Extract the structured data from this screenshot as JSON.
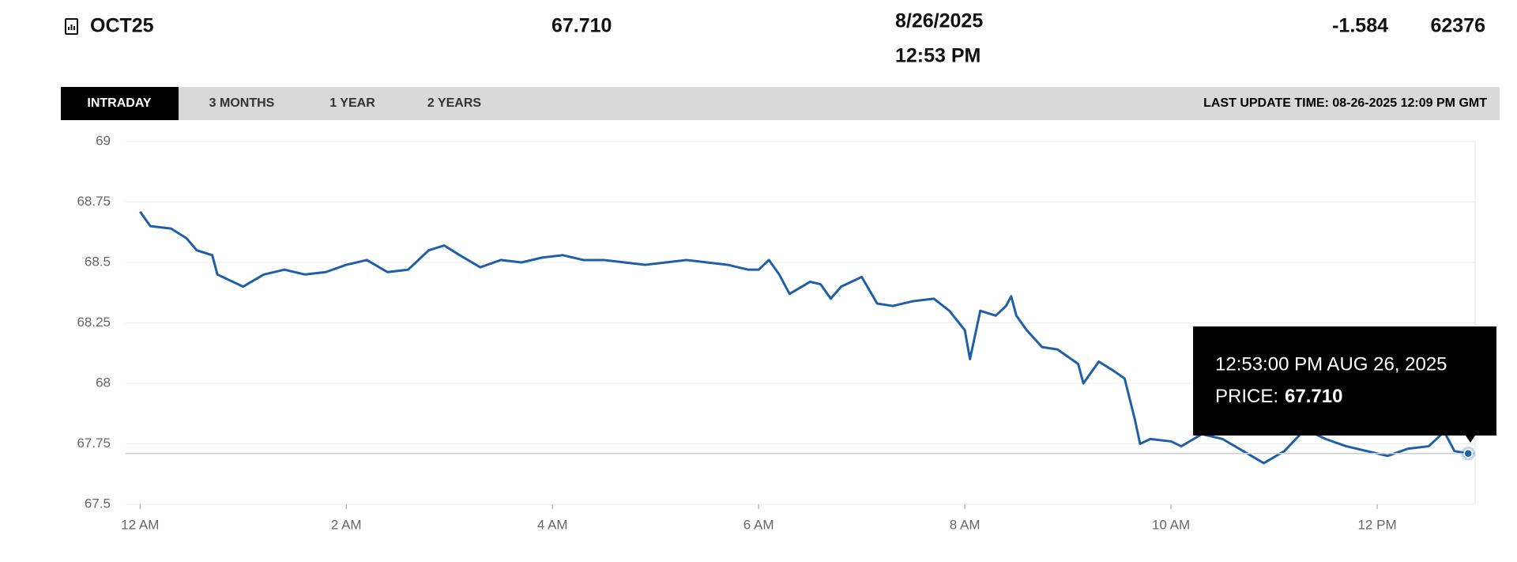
{
  "header": {
    "symbol": "OCT25",
    "price": "67.710",
    "date": "8/26/2025",
    "time": "12:53 PM",
    "change": "-1.584",
    "volume": "62376"
  },
  "tabs": [
    "INTRADAY",
    "3 MONTHS",
    "1 YEAR",
    "2 YEARS"
  ],
  "last_update": "LAST UPDATE TIME: 08-26-2025 12:09 PM GMT",
  "tooltip": {
    "time": "12:53:00 PM AUG 26, 2025",
    "price_label": "PRICE:",
    "price": "67.710"
  },
  "chart_data": {
    "type": "line",
    "x": [
      0,
      0.1,
      0.3,
      0.45,
      0.55,
      0.7,
      0.75,
      0.9,
      1.0,
      1.2,
      1.4,
      1.6,
      1.8,
      2.0,
      2.2,
      2.4,
      2.6,
      2.8,
      2.95,
      3.1,
      3.3,
      3.5,
      3.7,
      3.9,
      4.1,
      4.3,
      4.5,
      4.7,
      4.9,
      5.1,
      5.3,
      5.5,
      5.7,
      5.9,
      6.0,
      6.1,
      6.2,
      6.3,
      6.5,
      6.6,
      6.7,
      6.8,
      6.9,
      7.0,
      7.15,
      7.3,
      7.5,
      7.7,
      7.85,
      8.0,
      8.05,
      8.15,
      8.3,
      8.4,
      8.45,
      8.5,
      8.6,
      8.75,
      8.9,
      9.1,
      9.15,
      9.3,
      9.45,
      9.55,
      9.65,
      9.7,
      9.8,
      10.0,
      10.1,
      10.3,
      10.5,
      10.7,
      10.9,
      11.1,
      11.3,
      11.5,
      11.7,
      11.9,
      12.1,
      12.3,
      12.5,
      12.65,
      12.75,
      12.883
    ],
    "series": [
      {
        "name": "OCT25",
        "color": "#1f5fa8",
        "values": [
          68.71,
          68.65,
          68.64,
          68.6,
          68.55,
          68.53,
          68.45,
          68.42,
          68.4,
          68.45,
          68.47,
          68.45,
          68.46,
          68.49,
          68.51,
          68.46,
          68.47,
          68.55,
          68.57,
          68.53,
          68.48,
          68.51,
          68.5,
          68.52,
          68.53,
          68.51,
          68.51,
          68.5,
          68.49,
          68.5,
          68.51,
          68.5,
          68.49,
          68.47,
          68.47,
          68.51,
          68.45,
          68.37,
          68.42,
          68.41,
          68.35,
          68.4,
          68.42,
          68.44,
          68.33,
          68.32,
          68.34,
          68.35,
          68.3,
          68.22,
          68.1,
          68.3,
          68.28,
          68.32,
          68.36,
          68.28,
          68.22,
          68.15,
          68.14,
          68.08,
          68.0,
          68.09,
          68.05,
          68.02,
          67.85,
          67.75,
          67.77,
          67.76,
          67.74,
          67.79,
          67.77,
          67.72,
          67.67,
          67.72,
          67.81,
          67.77,
          67.74,
          67.72,
          67.7,
          67.73,
          67.74,
          67.8,
          67.72,
          67.71
        ]
      }
    ],
    "xlim": [
      -0.14,
      12.95
    ],
    "xticks": [
      {
        "value": 0,
        "label": "12 AM"
      },
      {
        "value": 2,
        "label": "2 AM"
      },
      {
        "value": 4,
        "label": "4 AM"
      },
      {
        "value": 6,
        "label": "6 AM"
      },
      {
        "value": 8,
        "label": "8 AM"
      },
      {
        "value": 10,
        "label": "10 AM"
      },
      {
        "value": 12,
        "label": "12 PM"
      }
    ],
    "ylim": [
      67.5,
      69
    ],
    "yticks": [
      67.5,
      67.75,
      68,
      68.25,
      68.5,
      68.75,
      69
    ],
    "grid": true
  }
}
